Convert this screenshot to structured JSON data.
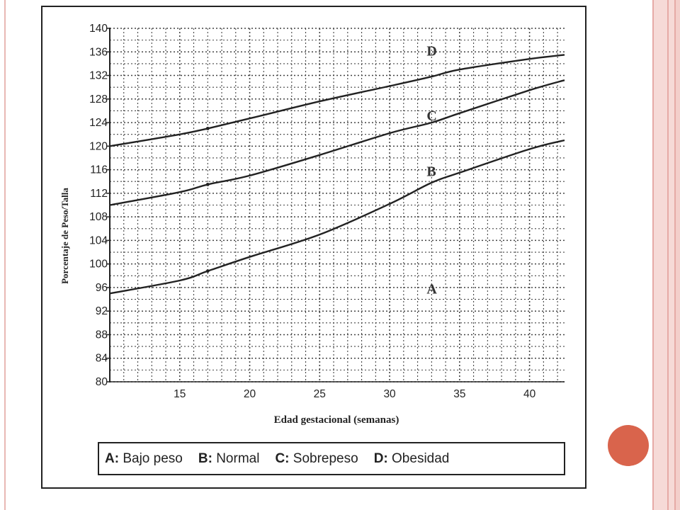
{
  "chart_data": {
    "type": "line",
    "title": "",
    "xlabel": "Edad gestacional (semanas)",
    "ylabel": "Porcentaje de Peso/Talla",
    "xlim": [
      10,
      42.5
    ],
    "ylim": [
      80,
      140
    ],
    "x_ticks": [
      15,
      20,
      25,
      30,
      35,
      40
    ],
    "y_ticks": [
      80,
      84,
      88,
      92,
      96,
      100,
      104,
      108,
      112,
      116,
      120,
      124,
      128,
      132,
      136,
      140
    ],
    "grid": true,
    "series": [
      {
        "name": "A",
        "x": [
          10,
          15,
          17,
          20,
          25,
          30,
          33,
          35,
          40,
          42.5
        ],
        "y": [
          95,
          97.2,
          98.8,
          101.2,
          105,
          110.2,
          113.8,
          115.5,
          119.5,
          121
        ]
      },
      {
        "name": "B",
        "x": [
          10,
          15,
          17,
          20,
          25,
          30,
          33,
          35,
          40,
          42.5
        ],
        "y": [
          110,
          112.2,
          113.5,
          115,
          118.5,
          122.2,
          124,
          125.6,
          129.5,
          131.2
        ]
      },
      {
        "name": "C",
        "x": [
          10,
          15,
          17,
          20,
          25,
          30,
          33,
          35,
          40,
          42.5
        ],
        "y": [
          120,
          122,
          123,
          124.7,
          127.6,
          130.2,
          131.8,
          133,
          134.8,
          135.5
        ]
      }
    ],
    "curve_labels": [
      {
        "text": "D",
        "x": 33,
        "y": 136.2
      },
      {
        "text": "C",
        "x": 33,
        "y": 125.2
      },
      {
        "text": "B",
        "x": 33,
        "y": 115.8
      },
      {
        "text": "A",
        "x": 33,
        "y": 95.8
      }
    ],
    "legend": [
      {
        "key": "A:",
        "label": "Bajo peso"
      },
      {
        "key": "B:",
        "label": "Normal"
      },
      {
        "key": "C:",
        "label": "Sobrepeso"
      },
      {
        "key": "D:",
        "label": "Obesidad"
      }
    ],
    "legend_placement": "bottom"
  }
}
